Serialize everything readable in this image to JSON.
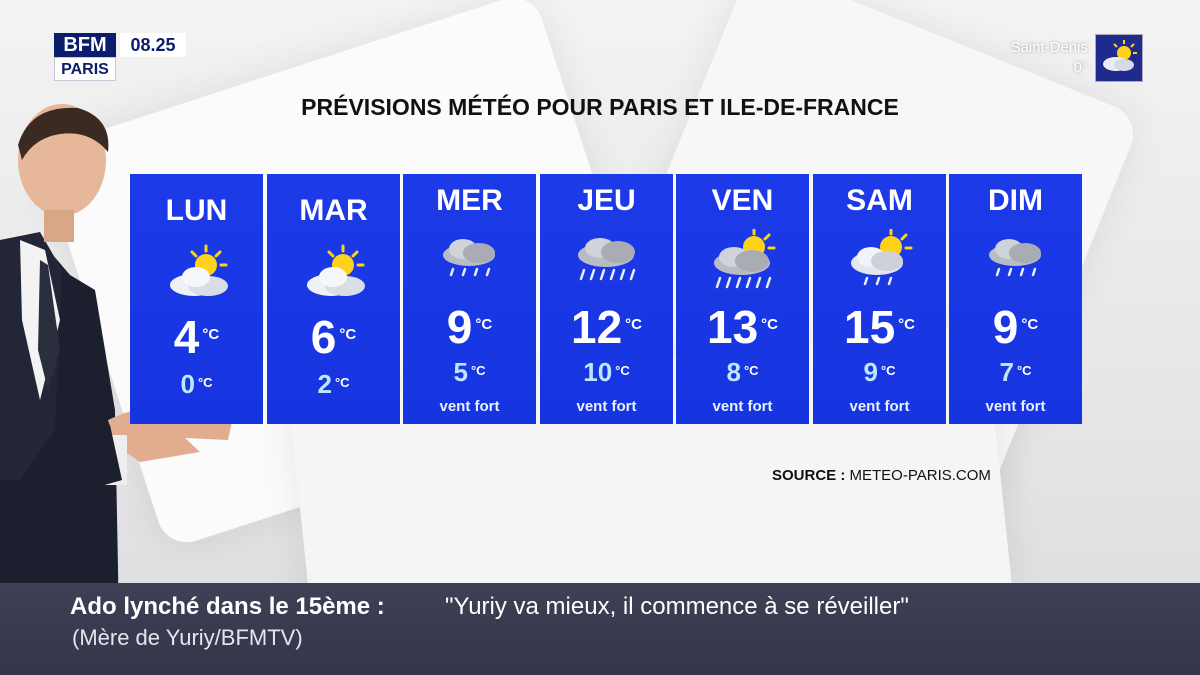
{
  "brand": {
    "name": "BFM",
    "region": "PARIS",
    "time": "08.25"
  },
  "corner_weather": {
    "city": "Saint-Denis",
    "temp": "0°",
    "icon": "sun-cloud-icon"
  },
  "title": "PRÉVISIONS MÉTÉO POUR PARIS ET ILE-DE-FRANCE",
  "days": [
    {
      "day": "LUN",
      "max": "4",
      "min": "0",
      "unit": "°C",
      "note": "",
      "icon": "sun-cloud-icon"
    },
    {
      "day": "MAR",
      "max": "6",
      "min": "2",
      "unit": "°C",
      "note": "",
      "icon": "sun-cloud-icon"
    },
    {
      "day": "MER",
      "max": "9",
      "min": "5",
      "unit": "°C",
      "note": "vent fort",
      "icon": "rain-cloud-icon"
    },
    {
      "day": "JEU",
      "max": "12",
      "min": "10",
      "unit": "°C",
      "note": "vent fort",
      "icon": "heavy-rain-cloud-icon"
    },
    {
      "day": "VEN",
      "max": "13",
      "min": "8",
      "unit": "°C",
      "note": "vent fort",
      "icon": "sun-heavy-rain-icon"
    },
    {
      "day": "SAM",
      "max": "15",
      "min": "9",
      "unit": "°C",
      "note": "vent fort",
      "icon": "sun-rain-icon"
    },
    {
      "day": "DIM",
      "max": "9",
      "min": "7",
      "unit": "°C",
      "note": "vent fort",
      "icon": "rain-cloud-icon"
    }
  ],
  "source": {
    "label": "SOURCE :",
    "value": "METEO-PARIS.COM"
  },
  "banner": {
    "headline": "Ado lynché dans le 15ème  :",
    "quote": "\"Yuriy va mieux, il commence à se réveiller\"",
    "attribution": "(Mère de Yuriy/BFMTV)"
  },
  "colors": {
    "panel": "#1634e0",
    "brand": "#0b1d6b",
    "banner": "#3a3b50"
  }
}
